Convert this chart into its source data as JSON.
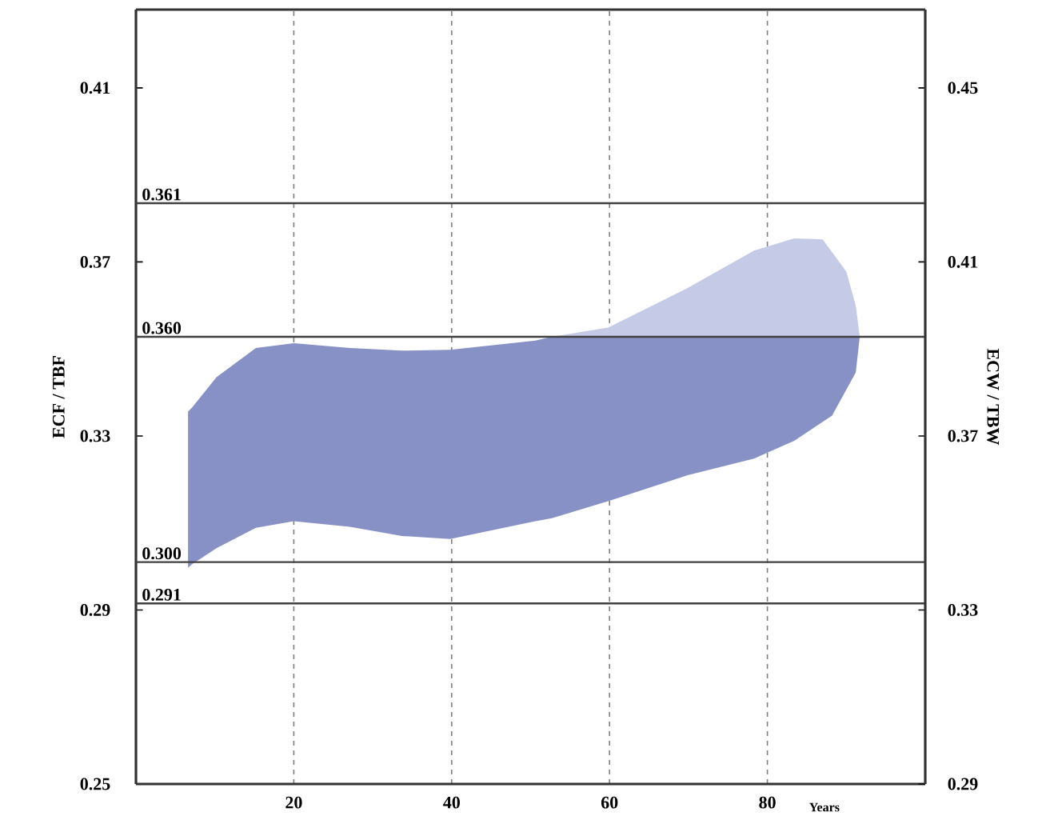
{
  "chart_data": {
    "type": "area",
    "xlabel": "Years",
    "ylabel": "ECF / TBF",
    "y2label": "ECW / TBW",
    "xlim": [
      0,
      100
    ],
    "xticks": [
      20,
      40,
      60,
      80
    ],
    "ylim": [
      0.25,
      0.428
    ],
    "yticks": [
      0.25,
      0.29,
      0.33,
      0.37,
      0.41
    ],
    "y2lim": [
      0.29,
      0.468
    ],
    "y2ticks": [
      0.29,
      0.33,
      0.37,
      0.41,
      0.45
    ],
    "grid": "x",
    "series": [
      {
        "color": "#8891c5",
        "x": [
          6.6,
          7.1,
          10.2,
          15.2,
          20.0,
          27.1,
          33.7,
          39.8,
          50.6,
          52.7,
          59.8,
          69.9,
          78.3,
          83.4,
          88.2,
          91.2,
          91.7
        ],
        "values": [
          null,
          null,
          null,
          null,
          null,
          null,
          null,
          null,
          null,
          null,
          null,
          null,
          null,
          null,
          null,
          null,
          null
        ],
        "lower": [
          0.2997,
          0.3005,
          0.3042,
          0.3089,
          0.3104,
          0.3091,
          0.307,
          0.3063,
          0.3104,
          0.3111,
          0.315,
          0.321,
          0.3248,
          0.3289,
          0.3347,
          0.3446,
          0.3528
        ],
        "upper": [
          0.3356,
          0.3365,
          0.3435,
          0.3502,
          0.3513,
          0.3502,
          0.3496,
          0.3498,
          0.3519,
          0.3528,
          0.3528,
          0.3528,
          0.3528,
          0.3528,
          0.3528,
          0.3528,
          0.3528
        ]
      },
      {
        "color": "#c5cae6",
        "x": [
          52.7,
          59.8,
          69.9,
          78.3,
          83.4,
          87.0,
          90.0,
          91.2,
          91.7
        ],
        "values": [
          null,
          null,
          null,
          null,
          null,
          null,
          null,
          null,
          null
        ],
        "lower": [
          0.3528,
          0.3528,
          0.3528,
          0.3528,
          0.3528,
          0.3528,
          0.3528,
          0.3528,
          0.3528
        ],
        "upper": [
          0.3528,
          0.3549,
          0.364,
          0.3726,
          0.3754,
          0.3752,
          0.3678,
          0.3599,
          0.3528
        ]
      }
    ],
    "ref_lines": [
      {
        "axis": "y",
        "value": 0.3835,
        "color": "#404040",
        "line_style": "solid"
      },
      {
        "axis": "y",
        "value": 0.3528,
        "color": "#404040",
        "line_style": "solid"
      },
      {
        "axis": "y",
        "value": 0.301,
        "color": "#404040",
        "line_style": "solid"
      },
      {
        "axis": "y",
        "value": 0.2915,
        "color": "#404040",
        "line_style": "solid"
      }
    ],
    "annotations": [
      "0.361",
      "0.360",
      "0.300",
      "0.291"
    ]
  }
}
